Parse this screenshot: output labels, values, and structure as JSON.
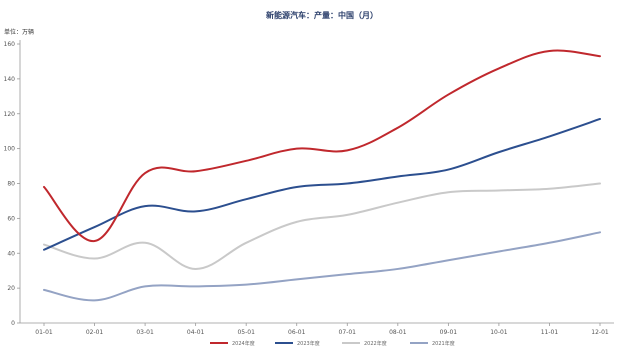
{
  "chart_data": {
    "type": "line",
    "title": "新能源汽车：产量：中国（月）",
    "unit_label": "单位：万辆",
    "categories": [
      "01-01",
      "02-01",
      "03-01",
      "04-01",
      "05-01",
      "06-01",
      "07-01",
      "08-01",
      "09-01",
      "10-01",
      "11-01",
      "12-01"
    ],
    "y_ticks": [
      0,
      20,
      40,
      60,
      80,
      100,
      120,
      140,
      160
    ],
    "ylim": [
      0,
      160
    ],
    "grid": false,
    "legend_position": "bottom",
    "series": [
      {
        "name": "2024年度",
        "color": "#c0282d",
        "values": [
          78,
          47,
          86,
          87,
          93,
          100,
          99,
          112,
          131,
          146,
          156,
          153
        ]
      },
      {
        "name": "2023年度",
        "color": "#2c4f8f",
        "values": [
          42,
          55,
          67,
          64,
          71,
          78,
          80,
          84,
          88,
          98,
          107,
          117
        ]
      },
      {
        "name": "2022年度",
        "color": "#c9c9c9",
        "values": [
          45,
          37,
          46,
          31,
          46,
          58,
          62,
          69,
          75,
          76,
          77,
          80
        ]
      },
      {
        "name": "2021年度",
        "color": "#94a3c4",
        "values": [
          19,
          13,
          21,
          21,
          22,
          25,
          28,
          31,
          36,
          41,
          46,
          52
        ]
      }
    ]
  }
}
